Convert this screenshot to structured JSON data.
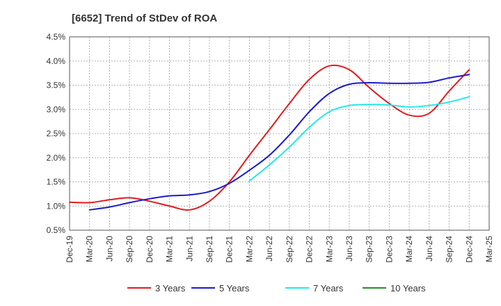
{
  "chart_data": {
    "type": "line",
    "title": "[6652]  Trend of StDev of ROA",
    "xlabel": "",
    "ylabel": "",
    "x_ticks": [
      "Dec-19",
      "Mar-20",
      "Jun-20",
      "Sep-20",
      "Dec-20",
      "Mar-21",
      "Jun-21",
      "Sep-21",
      "Dec-21",
      "Mar-22",
      "Jun-22",
      "Sep-22",
      "Dec-22",
      "Mar-23",
      "Jun-23",
      "Sep-23",
      "Dec-23",
      "Mar-24",
      "Jun-24",
      "Sep-24",
      "Dec-24",
      "Mar-25"
    ],
    "y_ticks": [
      "0.5%",
      "1.0%",
      "1.5%",
      "2.0%",
      "2.5%",
      "3.0%",
      "3.5%",
      "4.0%",
      "4.5%"
    ],
    "ylim": [
      0.5,
      4.5
    ],
    "y_unit": "%",
    "grid": true,
    "legend_position": "bottom",
    "series": [
      {
        "name": "3 Years",
        "color": "#e31a1c",
        "x": [
          "Dec-19",
          "Mar-20",
          "Jun-20",
          "Sep-20",
          "Dec-20",
          "Mar-21",
          "Jun-21",
          "Sep-21",
          "Dec-21",
          "Mar-22",
          "Jun-22",
          "Sep-22",
          "Dec-22",
          "Mar-23",
          "Jun-23",
          "Sep-23",
          "Dec-23",
          "Mar-24",
          "Jun-24",
          "Sep-24",
          "Dec-24"
        ],
        "values": [
          1.08,
          1.07,
          1.13,
          1.17,
          1.1,
          1.0,
          0.92,
          1.1,
          1.5,
          2.05,
          2.58,
          3.12,
          3.62,
          3.9,
          3.82,
          3.45,
          3.12,
          2.88,
          2.92,
          3.38,
          3.82
        ]
      },
      {
        "name": "5 Years",
        "color": "#1a1acd",
        "x": [
          "Mar-20",
          "Jun-20",
          "Sep-20",
          "Dec-20",
          "Mar-21",
          "Jun-21",
          "Sep-21",
          "Dec-21",
          "Mar-22",
          "Jun-22",
          "Sep-22",
          "Dec-22",
          "Mar-23",
          "Jun-23",
          "Sep-23",
          "Dec-23",
          "Mar-24",
          "Jun-24",
          "Sep-24",
          "Dec-24"
        ],
        "values": [
          0.92,
          0.98,
          1.07,
          1.15,
          1.21,
          1.23,
          1.3,
          1.47,
          1.74,
          2.05,
          2.47,
          2.95,
          3.33,
          3.52,
          3.55,
          3.54,
          3.54,
          3.56,
          3.65,
          3.72
        ]
      },
      {
        "name": "7 Years",
        "color": "#22e8e8",
        "x": [
          "Mar-22",
          "Jun-22",
          "Sep-22",
          "Dec-22",
          "Mar-23",
          "Jun-23",
          "Sep-23",
          "Dec-23",
          "Mar-24",
          "Jun-24",
          "Sep-24",
          "Dec-24"
        ],
        "values": [
          1.52,
          1.85,
          2.22,
          2.63,
          2.95,
          3.08,
          3.1,
          3.09,
          3.05,
          3.08,
          3.15,
          3.26
        ]
      },
      {
        "name": "10 Years",
        "color": "#2a8a2a",
        "x": [],
        "values": []
      }
    ]
  }
}
